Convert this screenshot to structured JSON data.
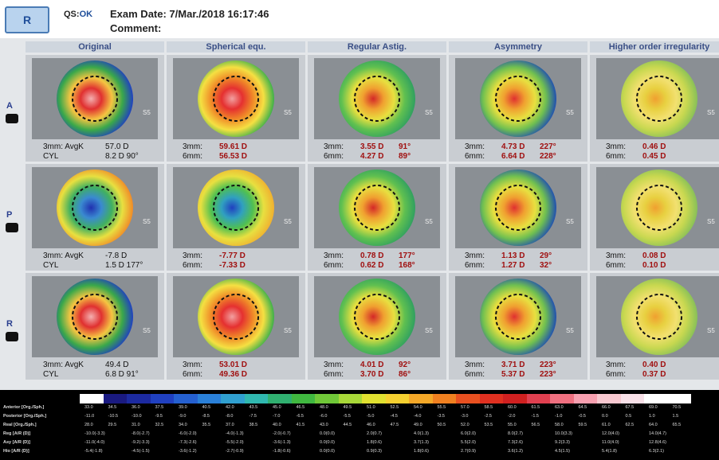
{
  "header": {
    "eye_button": "R",
    "qs_label": "QS:",
    "qs_value": "OK",
    "exam_date": "Exam Date: 7/Mar./2018 16:17:46",
    "comment": "Comment:"
  },
  "map_tag": "S5",
  "columns": [
    "Original",
    "Spherical equ.",
    "Regular Astig.",
    "Asymmetry",
    "Higher order irregularity"
  ],
  "rows": [
    {
      "label": "A",
      "cells": [
        {
          "lines": [
            [
              "3mm: AvgK",
              "57.0 D"
            ],
            [
              "CYL",
              "8.2 D 90°"
            ]
          ]
        },
        {
          "lines": [
            [
              "3mm:",
              "59.61 D"
            ],
            [
              "6mm:",
              "56.53 D"
            ]
          ]
        },
        {
          "lines": [
            [
              "3mm:",
              "3.55 D",
              "91°"
            ],
            [
              "6mm:",
              "4.27 D",
              "89°"
            ]
          ]
        },
        {
          "lines": [
            [
              "3mm:",
              "4.73 D",
              "227°"
            ],
            [
              "6mm:",
              "6.64 D",
              "228°"
            ]
          ]
        },
        {
          "lines": [
            [
              "3mm:",
              "0.46 D"
            ],
            [
              "6mm:",
              "0.45 D"
            ]
          ]
        }
      ]
    },
    {
      "label": "P",
      "cells": [
        {
          "lines": [
            [
              "3mm: AvgK",
              "-7.8 D"
            ],
            [
              "CYL",
              "1.5 D 177°"
            ]
          ]
        },
        {
          "lines": [
            [
              "3mm:",
              "-7.77 D"
            ],
            [
              "6mm:",
              "-7.33 D"
            ]
          ]
        },
        {
          "lines": [
            [
              "3mm:",
              "0.78 D",
              "177°"
            ],
            [
              "6mm:",
              "0.62 D",
              "168°"
            ]
          ]
        },
        {
          "lines": [
            [
              "3mm:",
              "1.13 D",
              "29°"
            ],
            [
              "6mm:",
              "1.27 D",
              "32°"
            ]
          ]
        },
        {
          "lines": [
            [
              "3mm:",
              "0.08 D"
            ],
            [
              "6mm:",
              "0.10 D"
            ]
          ]
        }
      ]
    },
    {
      "label": "R",
      "cells": [
        {
          "lines": [
            [
              "3mm: AvgK",
              "49.4 D"
            ],
            [
              "CYL",
              "6.8 D 91°"
            ]
          ]
        },
        {
          "lines": [
            [
              "3mm:",
              "53.01 D"
            ],
            [
              "6mm:",
              "49.36 D"
            ]
          ]
        },
        {
          "lines": [
            [
              "3mm:",
              "4.01 D",
              "92°"
            ],
            [
              "6mm:",
              "3.70 D",
              "86°"
            ]
          ]
        },
        {
          "lines": [
            [
              "3mm:",
              "3.71 D",
              "223°"
            ],
            [
              "6mm:",
              "5.37 D",
              "223°"
            ]
          ]
        },
        {
          "lines": [
            [
              "3mm:",
              "0.40 D"
            ],
            [
              "6mm:",
              "0.37 D"
            ]
          ]
        }
      ]
    }
  ],
  "scale": {
    "rows": [
      {
        "label": "Anterior [Org./Sph.]",
        "values": [
          "33.0",
          "34.5",
          "36.0",
          "37.5",
          "39.0",
          "40.5",
          "42.0",
          "43.5",
          "45.0",
          "46.5",
          "48.0",
          "49.5",
          "51.0",
          "52.5",
          "54.0",
          "55.5",
          "57.0",
          "58.5",
          "60.0",
          "61.5",
          "63.0",
          "64.5",
          "66.0",
          "67.5",
          "69.0",
          "70.5"
        ]
      },
      {
        "label": "Posterior [Org./Sph.]",
        "values": [
          "-11.0",
          "-10.5",
          "-10.0",
          "-9.5",
          "-9.0",
          "-8.5",
          "-8.0",
          "-7.5",
          "-7.0",
          "-6.5",
          "-6.0",
          "-5.5",
          "-5.0",
          "-4.5",
          "-4.0",
          "-3.5",
          "-3.0",
          "-2.5",
          "-2.0",
          "-1.5",
          "-1.0",
          "-0.5",
          "0.0",
          "0.5",
          "1.0",
          "1.5"
        ]
      },
      {
        "label": "Real [Org./Sph.]",
        "values": [
          "28.0",
          "29.5",
          "31.0",
          "32.5",
          "34.0",
          "35.5",
          "37.0",
          "38.5",
          "40.0",
          "41.5",
          "43.0",
          "44.5",
          "46.0",
          "47.5",
          "49.0",
          "50.5",
          "52.0",
          "53.5",
          "55.0",
          "56.5",
          "58.0",
          "59.5",
          "61.0",
          "62.5",
          "64.0",
          "65.5"
        ]
      },
      {
        "label": "Reg [A/R (D)]",
        "values": [
          "-10.0(-3.3)",
          "-8.0(-2.7)",
          "-6.0(-2.0)",
          "-4.0(-1.3)",
          "-2.0(-0.7)",
          "0.0(0.0)",
          "2.0(0.7)",
          "4.0(1.3)",
          "6.0(2.0)",
          "8.0(2.7)",
          "10.0(3.3)",
          "12.0(4.0)",
          "14.0(4.7)"
        ]
      },
      {
        "label": "Asy [A/R (D)]",
        "values": [
          "-11.0(-4.0)",
          "-9.2(-3.3)",
          "-7.3(-2.6)",
          "-5.5(-2.0)",
          "-3.6(-1.3)",
          "0.0(0.0)",
          "1.8(0.6)",
          "3.7(1.3)",
          "5.5(2.0)",
          "7.3(2.6)",
          "9.2(3.3)",
          "11.0(4.0)",
          "12.8(4.6)"
        ]
      },
      {
        "label": "Hio [A/R (D)]",
        "values": [
          "-5.4(-1.8)",
          "-4.5(-1.5)",
          "-3.6(-1.2)",
          "-2.7(-0.9)",
          "-1.8(-0.6)",
          "0.0(0.0)",
          "0.9(0.3)",
          "1.8(0.6)",
          "2.7(0.9)",
          "3.6(1.2)",
          "4.5(1.5)",
          "5.4(1.8)",
          "6.3(2.1)"
        ]
      }
    ]
  }
}
